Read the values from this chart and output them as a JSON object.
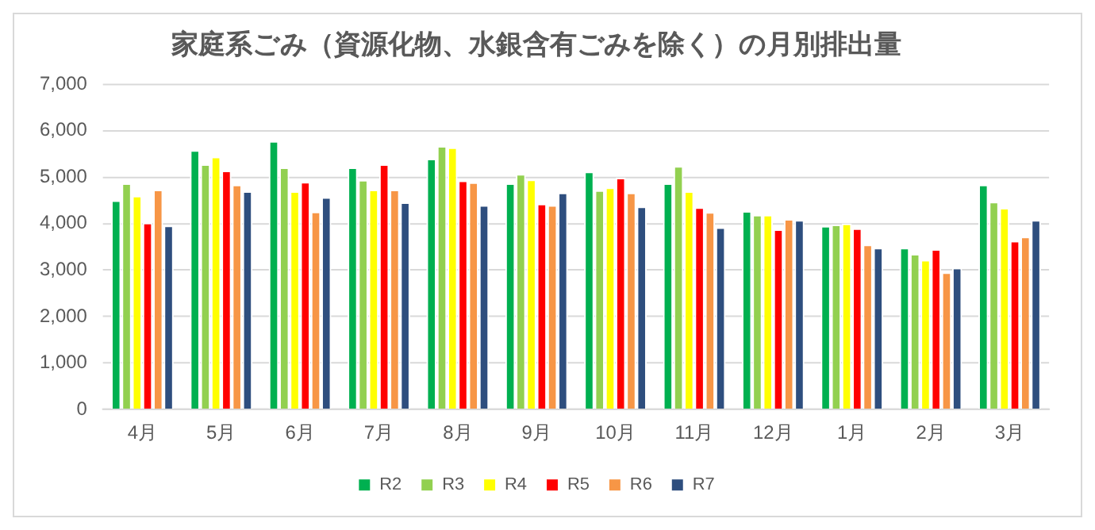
{
  "chart_data": {
    "type": "bar",
    "title": "家庭系ごみ（資源化物、水銀含有ごみを除く）の月別排出量",
    "categories": [
      "4月",
      "5月",
      "6月",
      "7月",
      "8月",
      "9月",
      "10月",
      "11月",
      "12月",
      "1月",
      "2月",
      "3月"
    ],
    "series": [
      {
        "name": "R2",
        "color": "#00b050",
        "values": [
          4500,
          5580,
          5780,
          5210,
          5400,
          4870,
          5120,
          4870,
          4270,
          3950,
          3480,
          4840
        ]
      },
      {
        "name": "R3",
        "color": "#92d050",
        "values": [
          4870,
          5280,
          5210,
          4940,
          5670,
          5070,
          4720,
          5240,
          4190,
          3980,
          3350,
          4470
        ]
      },
      {
        "name": "R4",
        "color": "#ffff00",
        "values": [
          4600,
          5440,
          4700,
          4730,
          5640,
          4950,
          4780,
          4700,
          4190,
          4000,
          3220,
          4340
        ]
      },
      {
        "name": "R5",
        "color": "#ff0000",
        "values": [
          4020,
          5140,
          4900,
          5280,
          4930,
          4430,
          4990,
          4350,
          3880,
          3900,
          3450,
          3630
        ]
      },
      {
        "name": "R6",
        "color": "#f79646",
        "values": [
          4730,
          4840,
          4260,
          4730,
          4890,
          4400,
          4670,
          4250,
          4100,
          3550,
          2950,
          3720
        ]
      },
      {
        "name": "R7",
        "color": "#2e4e7e",
        "values": [
          3960,
          4700,
          4570,
          4460,
          4400,
          4670,
          4370,
          3920,
          4080,
          3480,
          3050,
          4080
        ]
      }
    ],
    "ylim": [
      0,
      7000
    ],
    "yticks": [
      {
        "value": 0,
        "label": "0"
      },
      {
        "value": 1000,
        "label": "1,000"
      },
      {
        "value": 2000,
        "label": "2,000"
      },
      {
        "value": 3000,
        "label": "3,000"
      },
      {
        "value": 4000,
        "label": "4,000"
      },
      {
        "value": 5000,
        "label": "5,000"
      },
      {
        "value": 6000,
        "label": "6,000"
      },
      {
        "value": 7000,
        "label": "7,000"
      }
    ],
    "grid": "y",
    "legend": "bottom"
  }
}
